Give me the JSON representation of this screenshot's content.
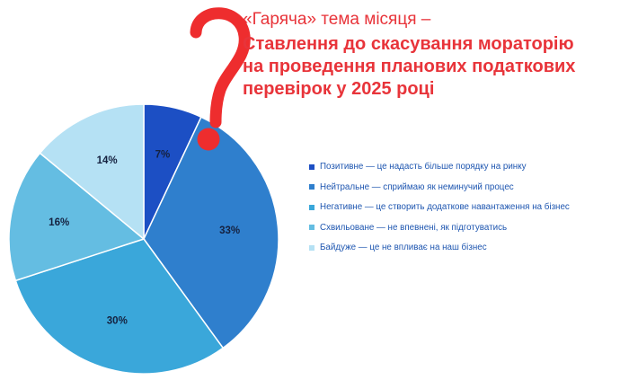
{
  "heading": {
    "subtitle": "«Гаряча» тема місяця –",
    "title_lines": [
      "Ставлення до скасування мораторію",
      "на проведення планових податкових",
      "перевірок у 2025 році"
    ]
  },
  "decoration": {
    "icon": "question-mark-icon",
    "color": "#ee2d2e"
  },
  "chart_data": {
    "type": "pie",
    "title": "Ставлення до скасування мораторію на проведення планових податкових перевірок у 2025 році",
    "slices": [
      {
        "label": "Позитивне — це надасть більше порядку на ринку",
        "value": 7,
        "value_label": "7%",
        "color": "#1c4fc4"
      },
      {
        "label": "Нейтральне — сприймаю як неминучий процес",
        "value": 33,
        "value_label": "33%",
        "color": "#2f7fcd"
      },
      {
        "label": "Негативне — це створить додаткове навантаження на бізнес",
        "value": 30,
        "value_label": "30%",
        "color": "#3aa7da"
      },
      {
        "label": "Схвильоване — не впевнені, як підготуватись",
        "value": 16,
        "value_label": "16%",
        "color": "#64bde2"
      },
      {
        "label": "Байдуже — це не впливає на наш бізнес",
        "value": 14,
        "value_label": "14%",
        "color": "#b5e1f4"
      }
    ],
    "legend_position": "right"
  }
}
